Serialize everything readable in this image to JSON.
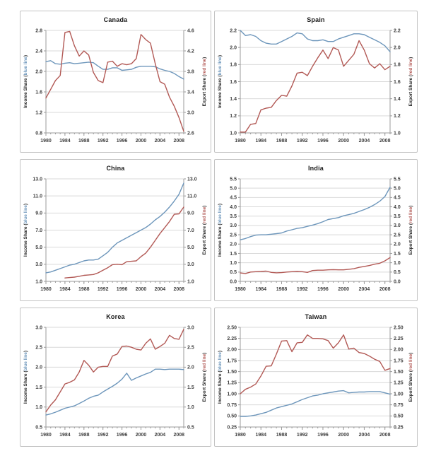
{
  "page": {
    "background": "#ffffff"
  },
  "colors": {
    "income_line": "#6d96bb",
    "export_line": "#b25955",
    "grid": "#d9d9d9",
    "axis_line": "#9b9b9b",
    "tick_text": "#3f3f3f",
    "title_text": "#1a1a1a",
    "panel_border": "#c3c3c3"
  },
  "axis_label_parts": {
    "left_prefix": "Income Share (",
    "left_highlight": "blue line",
    "left_suffix": ")",
    "right_prefix": "Export Share (",
    "right_highlight": "red line",
    "right_suffix": ")"
  },
  "chart_data": [
    {
      "type": "line",
      "title": "Canada",
      "years": {
        "start": 1980,
        "end": 2009
      },
      "x_tick_labels": [
        "1980",
        "1984",
        "1988",
        "1992",
        "1996",
        "2000",
        "2004",
        "2008"
      ],
      "left_axis": {
        "label": "Income Share (blue line)",
        "min": 0.8,
        "max": 2.8,
        "step": 0.4,
        "decimals": 1
      },
      "right_axis": {
        "label": "Export Share (red line)",
        "min": 2.6,
        "max": 4.6,
        "step": 0.4,
        "decimals": 1
      },
      "series": [
        {
          "name": "Income Share",
          "line": "blue",
          "axis": "left",
          "values": [
            2.19,
            2.21,
            2.15,
            2.14,
            2.16,
            2.17,
            2.15,
            2.16,
            2.17,
            2.18,
            2.17,
            2.1,
            2.04,
            2.04,
            2.07,
            2.07,
            2.02,
            2.03,
            2.04,
            2.08,
            2.1,
            2.1,
            2.1,
            2.09,
            2.05,
            2.02,
            2.0,
            1.96,
            1.9,
            1.85
          ]
        },
        {
          "name": "Export Share",
          "line": "red",
          "axis": "right",
          "values": [
            3.28,
            3.45,
            3.62,
            3.72,
            4.56,
            4.58,
            4.3,
            4.1,
            4.2,
            4.12,
            3.78,
            3.62,
            3.58,
            3.98,
            4.0,
            3.9,
            3.95,
            3.93,
            3.95,
            4.05,
            4.52,
            4.42,
            4.35,
            3.95,
            3.6,
            3.55,
            3.3,
            3.12,
            2.9,
            2.63
          ]
        }
      ]
    },
    {
      "type": "line",
      "title": "Spain",
      "years": {
        "start": 1980,
        "end": 2009
      },
      "x_tick_labels": [
        "1980",
        "1984",
        "1988",
        "1992",
        "1996",
        "2000",
        "2004",
        "2008"
      ],
      "left_axis": {
        "label": "Income Share (blue line)",
        "min": 1.0,
        "max": 2.2,
        "step": 0.2,
        "decimals": 1
      },
      "right_axis": {
        "label": "Export Share (red line)",
        "min": 1.0,
        "max": 2.2,
        "step": 0.2,
        "decimals": 1
      },
      "series": [
        {
          "name": "Income Share",
          "line": "blue",
          "axis": "left",
          "values": [
            2.2,
            2.14,
            2.15,
            2.13,
            2.08,
            2.05,
            2.04,
            2.04,
            2.07,
            2.1,
            2.13,
            2.17,
            2.16,
            2.1,
            2.08,
            2.08,
            2.09,
            2.07,
            2.07,
            2.1,
            2.12,
            2.14,
            2.16,
            2.16,
            2.15,
            2.12,
            2.09,
            2.06,
            2.02,
            1.95
          ]
        },
        {
          "name": "Export Share",
          "line": "red",
          "axis": "right",
          "values": [
            1.01,
            1.01,
            1.1,
            1.11,
            1.27,
            1.29,
            1.3,
            1.38,
            1.44,
            1.43,
            1.55,
            1.7,
            1.71,
            1.67,
            1.78,
            1.88,
            1.97,
            1.87,
            2.0,
            1.97,
            1.78,
            1.85,
            1.92,
            2.08,
            1.97,
            1.81,
            1.76,
            1.81,
            1.74,
            1.78
          ]
        }
      ]
    },
    {
      "type": "line",
      "title": "China",
      "years": {
        "start": 1980,
        "end": 2009
      },
      "x_tick_labels": [
        "1980",
        "1984",
        "1988",
        "1992",
        "1996",
        "2000",
        "2004",
        "2008"
      ],
      "left_axis": {
        "label": "Income Share (blue line)",
        "min": 1.0,
        "max": 13.0,
        "step": 2.0,
        "decimals": 1
      },
      "right_axis": {
        "label": "Export Share (red line)",
        "min": 1.0,
        "max": 13.0,
        "step": 2.0,
        "decimals": 1
      },
      "series": [
        {
          "name": "Income Share",
          "line": "blue",
          "axis": "left",
          "values": [
            2.0,
            2.1,
            2.3,
            2.5,
            2.7,
            2.9,
            3.0,
            3.2,
            3.4,
            3.5,
            3.5,
            3.6,
            4.0,
            4.4,
            5.0,
            5.5,
            5.8,
            6.1,
            6.4,
            6.7,
            7.0,
            7.3,
            7.7,
            8.2,
            8.6,
            9.1,
            9.7,
            10.4,
            11.2,
            12.5
          ]
        },
        {
          "name": "Export Share",
          "line": "red",
          "axis": "right",
          "values": [
            null,
            null,
            null,
            null,
            1.4,
            1.45,
            1.5,
            1.6,
            1.7,
            1.75,
            1.8,
            2.0,
            2.3,
            2.6,
            2.95,
            3.0,
            2.95,
            3.3,
            3.35,
            3.4,
            3.9,
            4.3,
            5.0,
            5.8,
            6.6,
            7.3,
            8.0,
            8.85,
            8.9,
            9.7
          ]
        }
      ]
    },
    {
      "type": "line",
      "title": "India",
      "years": {
        "start": 1980,
        "end": 2009
      },
      "x_tick_labels": [
        "1980",
        "1984",
        "1988",
        "1992",
        "1996",
        "2000",
        "2004",
        "2008"
      ],
      "left_axis": {
        "label": "Income Share (blue line)",
        "min": 0.0,
        "max": 5.5,
        "step": 0.5,
        "decimals": 1
      },
      "right_axis": {
        "label": "Export Share (red line)",
        "min": 0.0,
        "max": 5.5,
        "step": 0.5,
        "decimals": 1
      },
      "series": [
        {
          "name": "Income Share",
          "line": "blue",
          "axis": "left",
          "values": [
            2.23,
            2.3,
            2.4,
            2.48,
            2.5,
            2.5,
            2.53,
            2.56,
            2.6,
            2.7,
            2.77,
            2.84,
            2.88,
            2.95,
            3.02,
            3.1,
            3.2,
            3.32,
            3.37,
            3.42,
            3.52,
            3.58,
            3.65,
            3.75,
            3.85,
            3.97,
            4.12,
            4.3,
            4.55,
            5.05
          ]
        },
        {
          "name": "Export Share",
          "line": "red",
          "axis": "right",
          "values": [
            0.45,
            0.42,
            0.5,
            0.52,
            0.53,
            0.55,
            0.48,
            0.46,
            0.47,
            0.5,
            0.52,
            0.53,
            0.52,
            0.48,
            0.58,
            0.6,
            0.6,
            0.62,
            0.63,
            0.62,
            0.62,
            0.65,
            0.68,
            0.75,
            0.8,
            0.85,
            0.92,
            0.97,
            1.1,
            1.28
          ]
        }
      ]
    },
    {
      "type": "line",
      "title": "Korea",
      "years": {
        "start": 1980,
        "end": 2009
      },
      "x_tick_labels": [
        "1980",
        "1984",
        "1988",
        "1992",
        "1996",
        "2000",
        "2004",
        "2008"
      ],
      "left_axis": {
        "label": "Income Share (blue line)",
        "min": 0.5,
        "max": 3.0,
        "step": 0.5,
        "decimals": 1
      },
      "right_axis": {
        "label": "Export Share (red line)",
        "min": 0.5,
        "max": 3.0,
        "step": 0.5,
        "decimals": 1
      },
      "series": [
        {
          "name": "Income Share",
          "line": "blue",
          "axis": "left",
          "values": [
            0.8,
            0.83,
            0.87,
            0.92,
            0.97,
            1.0,
            1.03,
            1.09,
            1.15,
            1.22,
            1.27,
            1.3,
            1.38,
            1.45,
            1.52,
            1.6,
            1.7,
            1.85,
            1.67,
            1.73,
            1.78,
            1.83,
            1.87,
            1.95,
            1.95,
            1.94,
            1.95,
            1.95,
            1.95,
            1.94
          ]
        },
        {
          "name": "Export Share",
          "line": "red",
          "axis": "right",
          "values": [
            0.88,
            1.05,
            1.18,
            1.38,
            1.58,
            1.62,
            1.68,
            1.88,
            2.17,
            2.05,
            1.88,
            2.0,
            2.02,
            2.02,
            2.28,
            2.33,
            2.52,
            2.53,
            2.5,
            2.45,
            2.43,
            2.6,
            2.71,
            2.45,
            2.52,
            2.6,
            2.8,
            2.72,
            2.7,
            2.95
          ]
        }
      ]
    },
    {
      "type": "line",
      "title": "Taiwan",
      "years": {
        "start": 1980,
        "end": 2009
      },
      "x_tick_labels": [
        "1980",
        "1984",
        "1988",
        "1992",
        "1996",
        "2000",
        "2004",
        "2008"
      ],
      "left_axis": {
        "label": "Income Share (blue line)",
        "min": 0.25,
        "max": 2.5,
        "step": 0.25,
        "decimals": 2
      },
      "right_axis": {
        "label": "Export Share (red line)",
        "min": 0.25,
        "max": 2.5,
        "step": 0.25,
        "decimals": 2
      },
      "series": [
        {
          "name": "Income Share",
          "line": "blue",
          "axis": "left",
          "values": [
            0.49,
            0.49,
            0.5,
            0.52,
            0.55,
            0.58,
            0.63,
            0.68,
            0.71,
            0.74,
            0.77,
            0.82,
            0.87,
            0.91,
            0.95,
            0.97,
            1.0,
            1.02,
            1.04,
            1.06,
            1.07,
            1.02,
            1.03,
            1.04,
            1.04,
            1.05,
            1.05,
            1.05,
            1.02,
            0.99
          ]
        },
        {
          "name": "Export Share",
          "line": "red",
          "axis": "right",
          "values": [
            1.0,
            1.1,
            1.15,
            1.22,
            1.4,
            1.62,
            1.63,
            1.9,
            2.19,
            2.2,
            1.95,
            2.15,
            2.16,
            2.33,
            2.25,
            2.25,
            2.24,
            2.2,
            2.03,
            2.15,
            2.33,
            2.01,
            2.03,
            1.93,
            1.91,
            1.85,
            1.78,
            1.73,
            1.53,
            1.57
          ]
        }
      ]
    }
  ]
}
